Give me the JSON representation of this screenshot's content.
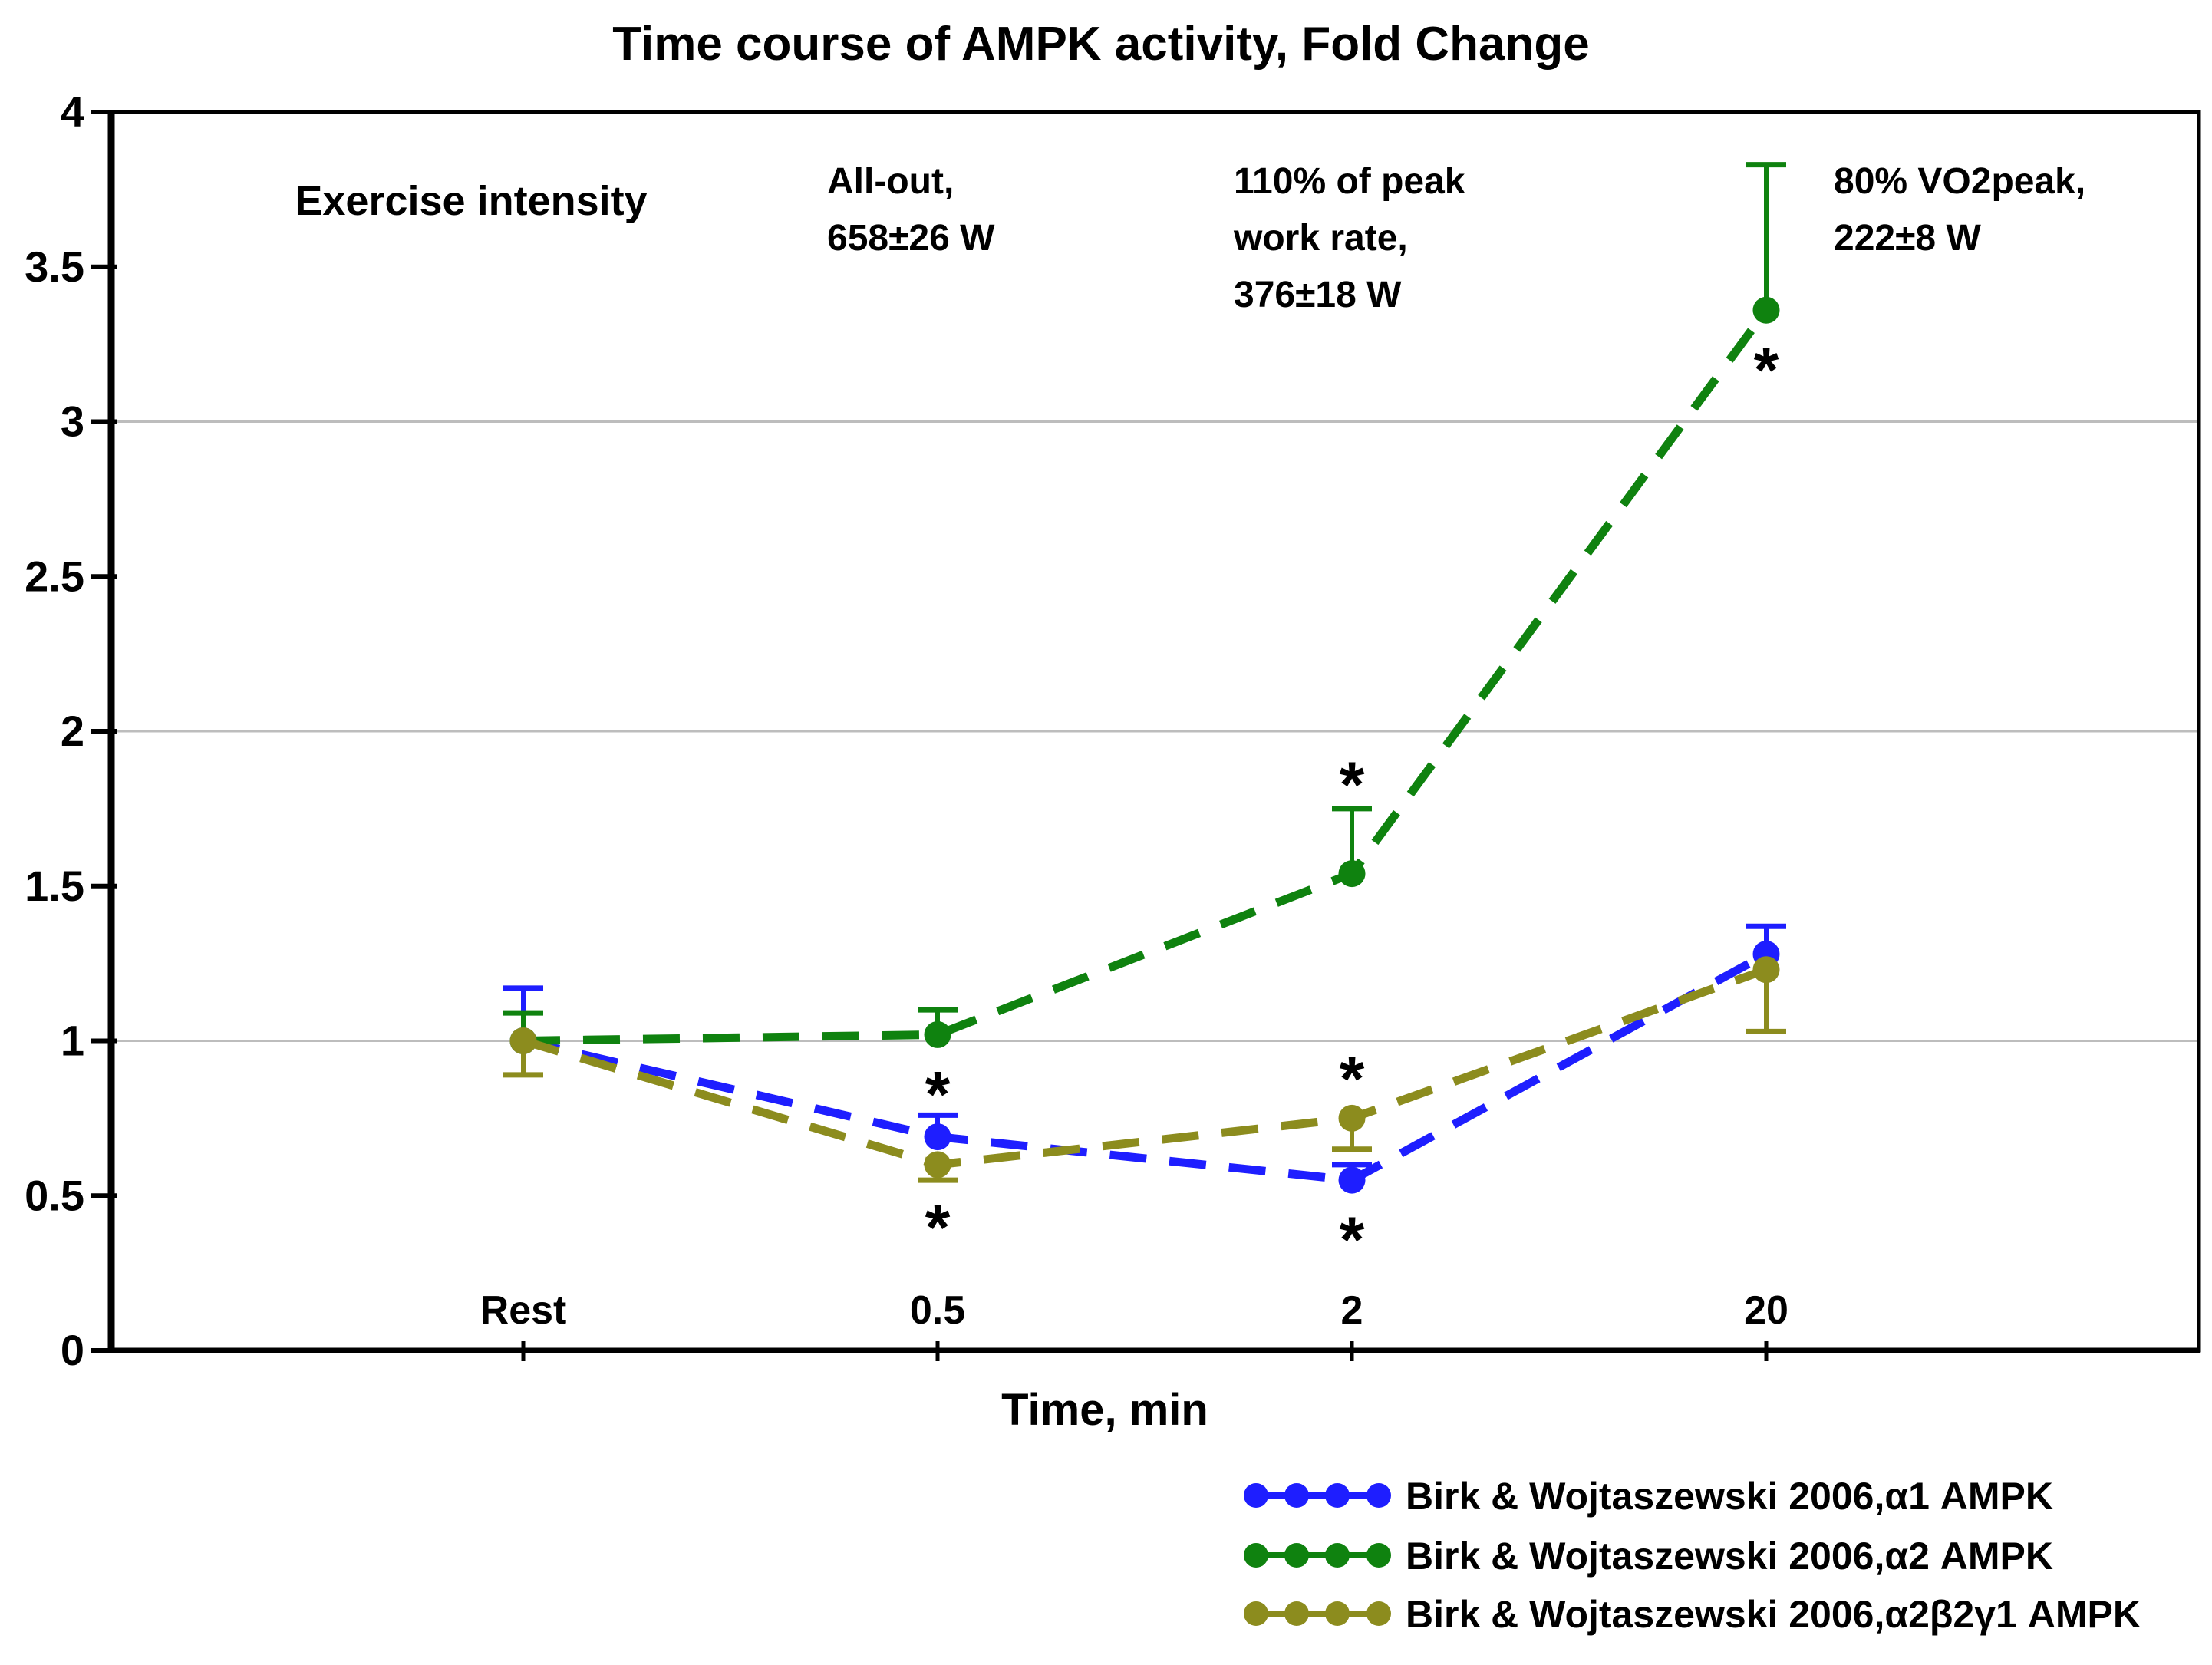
{
  "chart_data": {
    "type": "line",
    "title": "Time course of AMPK activity, Fold Change",
    "xlabel": "Time, min",
    "ylabel": "",
    "categories": [
      "Rest",
      "0.5",
      "2",
      "20"
    ],
    "ylim": [
      0,
      4
    ],
    "y_tick_step": 0.5,
    "y_tick_labels": [
      "0",
      "0.5",
      "1",
      "1.5",
      "2",
      "2.5",
      "3",
      "3.5",
      "4"
    ],
    "gridlines_at": [
      1,
      2,
      3
    ],
    "grid_color": "#bdbdbd",
    "axis_color": "#000000",
    "line_style": "dashed",
    "legend_position": "bottom-right",
    "series": [
      {
        "name": "Birk & Wojtaszewski 2006,α1 AMPK",
        "color": "#1e1eff",
        "values": [
          1.0,
          0.69,
          0.55,
          1.28
        ],
        "errors": [
          0.17,
          0.07,
          0.05,
          0.09
        ],
        "error_direction": "up"
      },
      {
        "name": "Birk & Wojtaszewski 2006,α2 AMPK",
        "color": "#0f820f",
        "values": [
          1.0,
          1.02,
          1.54,
          3.36
        ],
        "errors": [
          0.09,
          0.08,
          0.21,
          0.47
        ],
        "error_direction": "up"
      },
      {
        "name": "Birk & Wojtaszewski 2006,α2β2γ1 AMPK",
        "color": "#8c8c1e",
        "values": [
          1.0,
          0.6,
          0.75,
          1.23
        ],
        "errors": [
          0.11,
          0.05,
          0.1,
          0.2
        ],
        "error_direction": "down"
      }
    ],
    "significance_marks": [
      {
        "series_index": 0,
        "category_index": 1,
        "value": 0.86,
        "symbol": "*"
      },
      {
        "series_index": 2,
        "category_index": 1,
        "value": 0.43,
        "symbol": "*"
      },
      {
        "series_index": 1,
        "category_index": 2,
        "value": 1.86,
        "symbol": "*"
      },
      {
        "series_index": 2,
        "category_index": 2,
        "value": 0.91,
        "symbol": "*"
      },
      {
        "series_index": 0,
        "category_index": 2,
        "value": 0.39,
        "symbol": "*"
      },
      {
        "series_index": 1,
        "category_index": 3,
        "value": 3.2,
        "symbol": "*"
      }
    ],
    "annotations": {
      "heading": "Exercise intensity",
      "items": [
        {
          "lines": [
            "All-out,",
            "658±26 W"
          ]
        },
        {
          "lines": [
            "110% of peak",
            "work rate,",
            "376±18 W"
          ]
        },
        {
          "lines": [
            "80% VO2peak,",
            "222±8 W"
          ]
        }
      ]
    }
  }
}
